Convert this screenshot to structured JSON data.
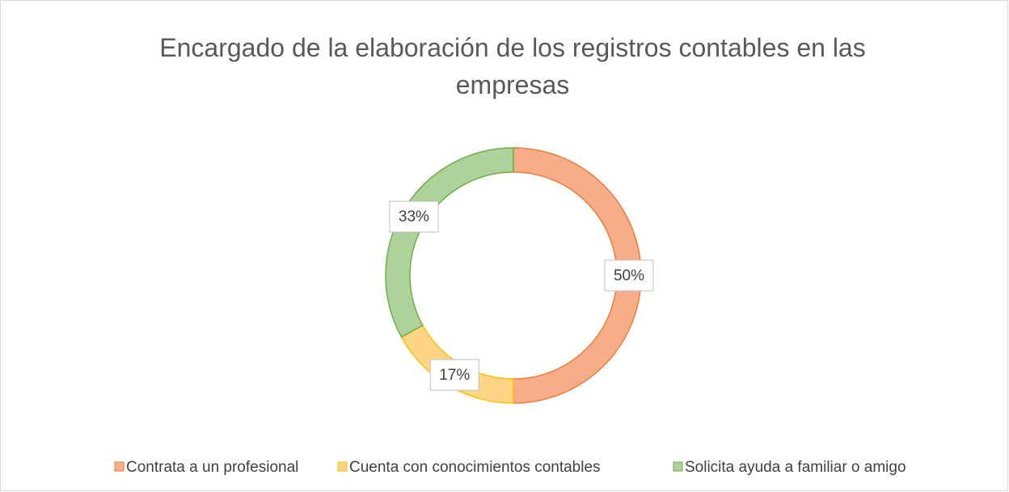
{
  "chart_data": {
    "type": "donut",
    "title": "Encargado de la elaboración de los registros contables en las empresas",
    "categories": [
      "Contrata a un profesional",
      "Cuenta con conocimientos contables",
      "Solicita ayuda a familiar o amigo"
    ],
    "values": [
      50,
      17,
      33
    ],
    "value_labels": [
      "50%",
      "17%",
      "33%"
    ],
    "colors": [
      "#f7ad8a",
      "#ffd585",
      "#add39a"
    ],
    "edge_colors": [
      "#ed7d31",
      "#ffc000",
      "#70ad47"
    ],
    "legend": "bottom"
  }
}
